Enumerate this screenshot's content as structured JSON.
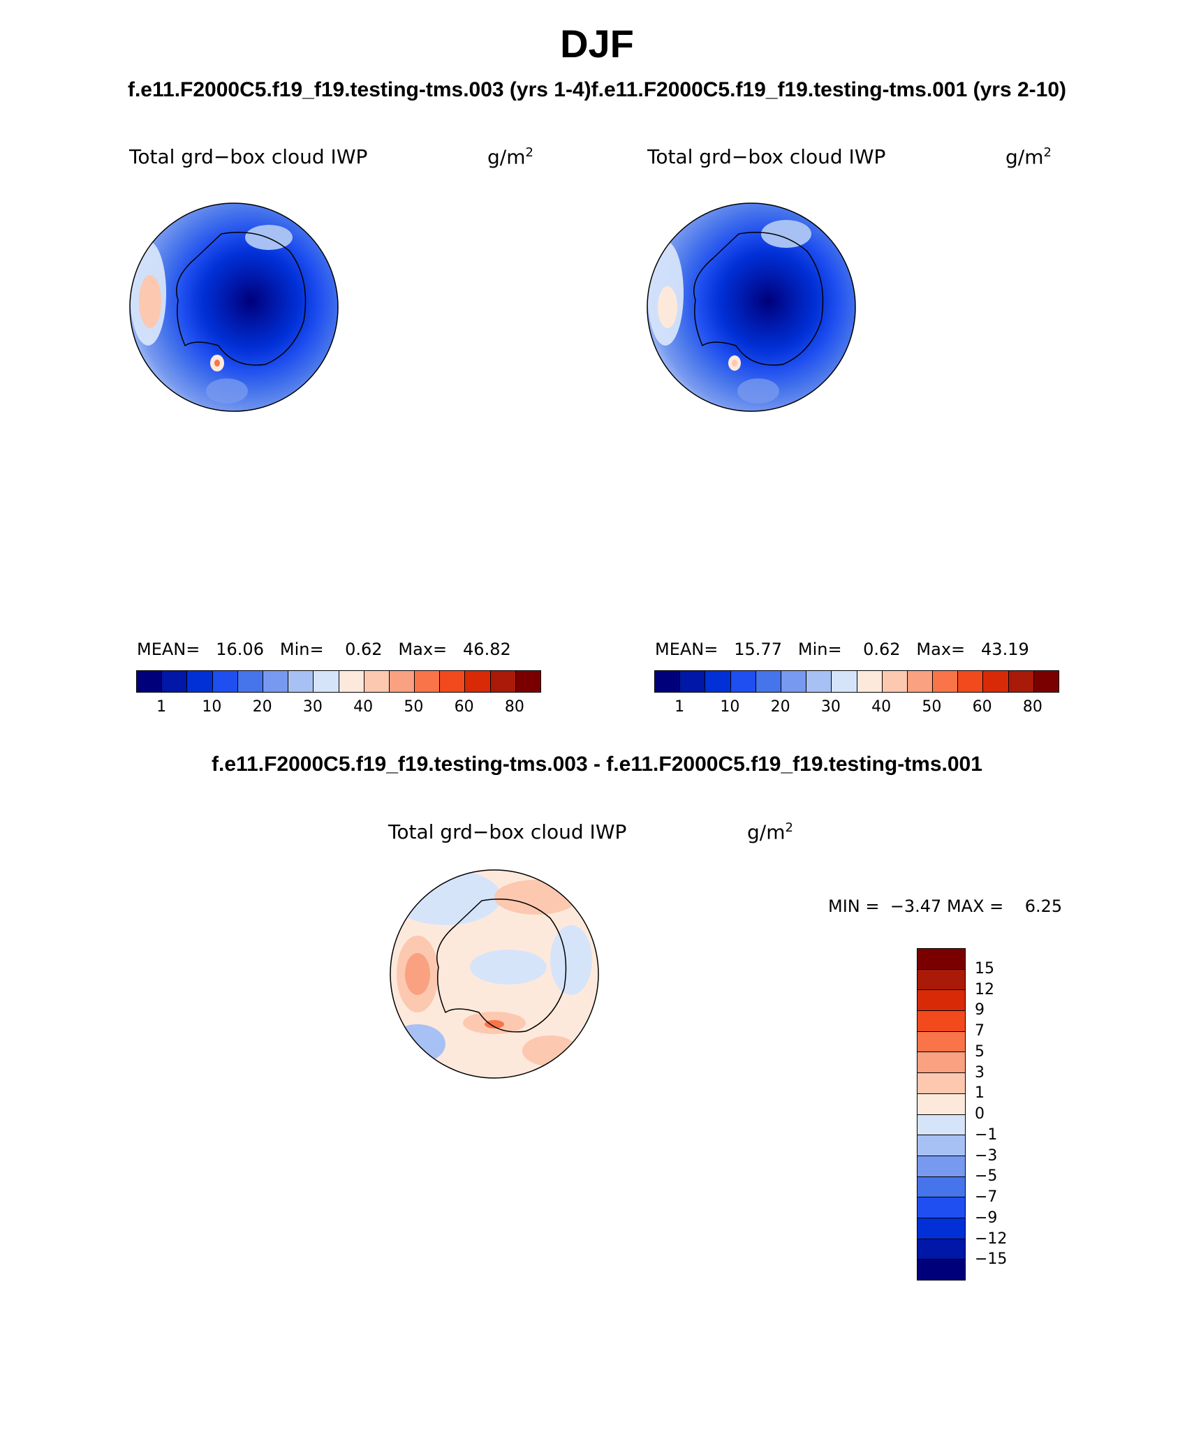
{
  "title": "DJF",
  "case_titles": "f.e11.F2000C5.f19_f19.testing-tms.003 (yrs 1-4)f.e11.F2000C5.f19_f19.testing-tms.001 (yrs 2-10)",
  "diff_title": "f.e11.F2000C5.f19_f19.testing-tms.003 - f.e11.F2000C5.f19_f19.testing-tms.001",
  "panels": [
    {
      "variable": "Total grd−box cloud IWP",
      "units": "g/m",
      "units_sup": "2",
      "mean_label": "MEAN=",
      "mean": "16.06",
      "min_label": "Min=",
      "min": "0.62",
      "max_label": "Max=",
      "max": "46.82"
    },
    {
      "variable": "Total grd−box cloud IWP",
      "units": "g/m",
      "units_sup": "2",
      "mean_label": "MEAN=",
      "mean": "15.77",
      "min_label": "Min=",
      "min": "0.62",
      "max_label": "Max=",
      "max": "43.19"
    }
  ],
  "diff_panel": {
    "variable": "Total grd−box cloud IWP",
    "units": "g/m",
    "units_sup": "2",
    "min_label": "MIN =",
    "min": "−3.47",
    "max_label": "MAX =",
    "max": "6.25"
  },
  "colorbar": {
    "levels": [
      "1",
      "10",
      "20",
      "30",
      "40",
      "50",
      "60",
      "80"
    ],
    "colors": [
      "#00007a",
      "#0017a8",
      "#0030d6",
      "#1f4ff0",
      "#4674eb",
      "#7799ef",
      "#a8c1f4",
      "#d6e4fa",
      "#fde9dc",
      "#fcc8b0",
      "#f9a180",
      "#f97448",
      "#f24a1d",
      "#d92a08",
      "#aa1a08",
      "#7a0000"
    ]
  },
  "diff_colorbar": {
    "levels": [
      "15",
      "12",
      "9",
      "7",
      "5",
      "3",
      "1",
      "0",
      "−1",
      "−3",
      "−5",
      "−7",
      "−9",
      "−12",
      "−15"
    ],
    "colors": [
      "#7a0000",
      "#aa1a08",
      "#d92a08",
      "#f24a1d",
      "#f97448",
      "#f9a180",
      "#fcc8b0",
      "#fde9dc",
      "#d6e4fa",
      "#a8c1f4",
      "#7799ef",
      "#4674eb",
      "#1f4ff0",
      "#0030d6",
      "#0017a8",
      "#00007a"
    ]
  }
}
